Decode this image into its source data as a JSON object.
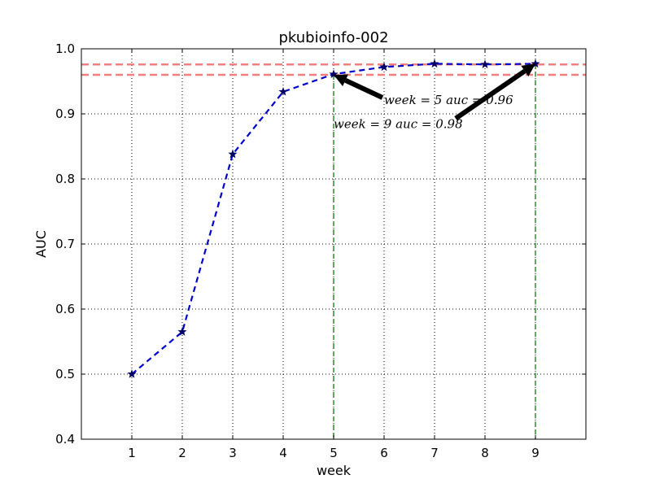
{
  "chart_data": {
    "type": "line",
    "title": "pkubioinfo-002",
    "xlabel": "week",
    "ylabel": "AUC",
    "xlim": [
      0,
      10
    ],
    "ylim": [
      0.4,
      1.0
    ],
    "xticks": [
      1,
      2,
      3,
      4,
      5,
      6,
      7,
      8,
      9
    ],
    "yticks": [
      0.4,
      0.5,
      0.6,
      0.7,
      0.8,
      0.9,
      1.0
    ],
    "ytick_labels": [
      "0.4",
      "0.5",
      "0.6",
      "0.7",
      "0.8",
      "0.9",
      "1.0"
    ],
    "grid": true,
    "series": [
      {
        "x": [
          1,
          2,
          3,
          4,
          5,
          6,
          7,
          8,
          9
        ],
        "values": [
          0.5,
          0.565,
          0.838,
          0.934,
          0.961,
          0.972,
          0.977,
          0.976,
          0.977
        ],
        "color": "#0000cc",
        "marker": "star",
        "linestyle": "dashed"
      }
    ],
    "reference_lines": {
      "horizontal": [
        0.96,
        0.976
      ],
      "horizontal_color": "#f08080",
      "vertical": [
        5,
        9
      ],
      "vertical_color": "#2e8b2e"
    },
    "annotations": [
      {
        "text": "week = 5 auc = 0.96",
        "point": [
          5,
          0.96
        ],
        "text_pos": [
          6,
          0.915
        ]
      },
      {
        "text": "week = 9 auc = 0.98",
        "point": [
          9,
          0.977
        ],
        "text_pos": [
          5,
          0.878
        ]
      }
    ]
  }
}
